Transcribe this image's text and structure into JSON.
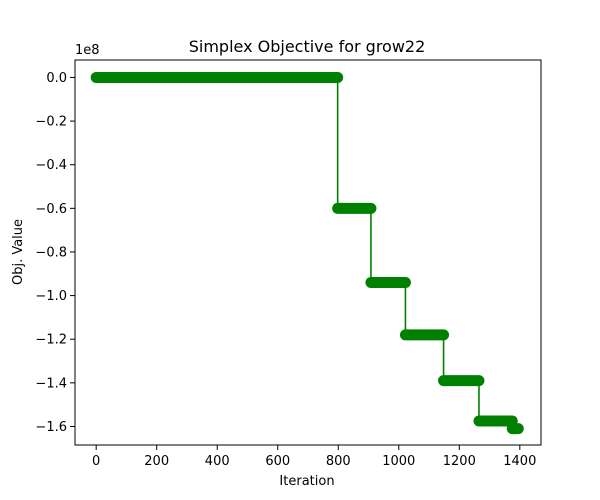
{
  "chart_data": {
    "type": "line",
    "title": "Simplex Objective for grow22",
    "xlabel": "Iteration",
    "ylabel": "Obj. Value",
    "y_offset_label": "1e8",
    "xlim": [
      -70,
      1470
    ],
    "ylim": [
      -1.685,
      0.08
    ],
    "xticks": [
      0,
      200,
      400,
      600,
      800,
      1000,
      1200,
      1400
    ],
    "xtick_labels": [
      "0",
      "200",
      "400",
      "600",
      "800",
      "1000",
      "1200",
      "1400"
    ],
    "yticks": [
      0.0,
      -0.2,
      -0.4,
      -0.6,
      -0.8,
      -1.0,
      -1.2,
      -1.4,
      -1.6
    ],
    "ytick_labels": [
      "0.0",
      "−0.2",
      "−0.4",
      "−0.6",
      "−0.8",
      "−1.0",
      "−1.2",
      "−1.4",
      "−1.6"
    ],
    "grid": false,
    "series": [
      {
        "color": "#008000",
        "marker": "circle",
        "segments": [
          {
            "x_start": 0,
            "x_end": 798,
            "y": 0.0
          },
          {
            "x_start": 798,
            "x_end": 908,
            "y": -0.6
          },
          {
            "x_start": 908,
            "x_end": 1022,
            "y": -0.94
          },
          {
            "x_start": 1022,
            "x_end": 1148,
            "y": -1.18
          },
          {
            "x_start": 1148,
            "x_end": 1265,
            "y": -1.39
          },
          {
            "x_start": 1265,
            "x_end": 1375,
            "y": -1.575
          },
          {
            "x_start": 1375,
            "x_end": 1395,
            "y": -1.61
          }
        ]
      }
    ]
  }
}
